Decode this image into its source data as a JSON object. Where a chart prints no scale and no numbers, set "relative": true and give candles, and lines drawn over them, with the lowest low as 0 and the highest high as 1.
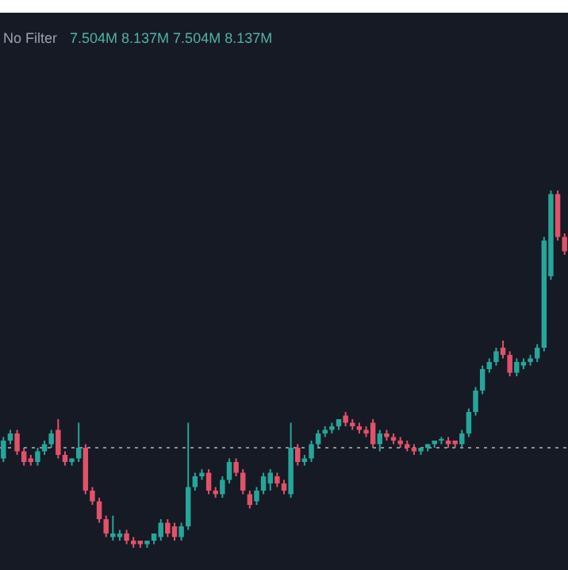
{
  "chart_data": {
    "type": "candlestick",
    "relative": true,
    "annotations": [
      "No Filter",
      "7.504M 8.137M 7.504M 8.137M"
    ],
    "categories": [
      null,
      null,
      null,
      null,
      null,
      null,
      null,
      null,
      null,
      null,
      null,
      null,
      null,
      null,
      null,
      null,
      null,
      null,
      null,
      null,
      null,
      null,
      null,
      null,
      null,
      null,
      null,
      null,
      null,
      null,
      null,
      null,
      null,
      null,
      null,
      null,
      null,
      null,
      null,
      null,
      null,
      null,
      null,
      null,
      null,
      null,
      null,
      null,
      null,
      null,
      null,
      null,
      null,
      null,
      null,
      null,
      null,
      null,
      null,
      null,
      null,
      null,
      null,
      null,
      null,
      null,
      null,
      null,
      null,
      null,
      null,
      null,
      null,
      null,
      null,
      null,
      null,
      null,
      null,
      null,
      null,
      null,
      null
    ],
    "ohlc": [
      [
        0.25,
        0.31,
        0.24,
        0.3
      ],
      [
        0.3,
        0.33,
        0.29,
        0.32
      ],
      [
        0.32,
        0.33,
        0.26,
        0.27
      ],
      [
        0.27,
        0.28,
        0.23,
        0.24
      ],
      [
        0.25,
        0.26,
        0.23,
        0.24
      ],
      [
        0.24,
        0.28,
        0.23,
        0.27
      ],
      [
        0.27,
        0.3,
        0.26,
        0.29
      ],
      [
        0.29,
        0.33,
        0.28,
        0.32
      ],
      [
        0.33,
        0.36,
        0.25,
        0.26
      ],
      [
        0.26,
        0.27,
        0.23,
        0.24
      ],
      [
        0.24,
        0.25,
        0.23,
        0.25
      ],
      [
        0.25,
        0.35,
        0.24,
        0.28
      ],
      [
        0.28,
        0.29,
        0.15,
        0.16
      ],
      [
        0.16,
        0.17,
        0.12,
        0.13
      ],
      [
        0.13,
        0.14,
        0.07,
        0.08
      ],
      [
        0.08,
        0.09,
        0.03,
        0.04
      ],
      [
        0.03,
        0.09,
        0.02,
        0.04
      ],
      [
        0.03,
        0.05,
        0.02,
        0.04
      ],
      [
        0.04,
        0.05,
        0.01,
        0.02
      ],
      [
        0.02,
        0.03,
        0.0,
        0.01
      ],
      [
        0.02,
        0.02,
        0.0,
        0.01
      ],
      [
        0.01,
        0.02,
        0.0,
        0.02
      ],
      [
        0.02,
        0.04,
        0.01,
        0.04
      ],
      [
        0.03,
        0.08,
        0.02,
        0.07
      ],
      [
        0.07,
        0.08,
        0.03,
        0.04
      ],
      [
        0.06,
        0.07,
        0.02,
        0.03
      ],
      [
        0.03,
        0.07,
        0.02,
        0.06
      ],
      [
        0.06,
        0.35,
        0.05,
        0.17
      ],
      [
        0.17,
        0.21,
        0.16,
        0.2
      ],
      [
        0.2,
        0.22,
        0.19,
        0.21
      ],
      [
        0.21,
        0.22,
        0.15,
        0.16
      ],
      [
        0.16,
        0.17,
        0.14,
        0.15
      ],
      [
        0.15,
        0.2,
        0.14,
        0.19
      ],
      [
        0.19,
        0.25,
        0.18,
        0.24
      ],
      [
        0.24,
        0.25,
        0.2,
        0.21
      ],
      [
        0.21,
        0.22,
        0.15,
        0.16
      ],
      [
        0.15,
        0.16,
        0.11,
        0.12
      ],
      [
        0.13,
        0.17,
        0.12,
        0.16
      ],
      [
        0.16,
        0.21,
        0.15,
        0.2
      ],
      [
        0.18,
        0.22,
        0.16,
        0.21
      ],
      [
        0.2,
        0.21,
        0.17,
        0.18
      ],
      [
        0.18,
        0.19,
        0.15,
        0.16
      ],
      [
        0.15,
        0.35,
        0.14,
        0.28
      ],
      [
        0.28,
        0.29,
        0.23,
        0.24
      ],
      [
        0.24,
        0.26,
        0.23,
        0.25
      ],
      [
        0.25,
        0.3,
        0.24,
        0.29
      ],
      [
        0.29,
        0.33,
        0.28,
        0.32
      ],
      [
        0.32,
        0.34,
        0.31,
        0.33
      ],
      [
        0.33,
        0.35,
        0.32,
        0.34
      ],
      [
        0.34,
        0.36,
        0.33,
        0.36
      ],
      [
        0.37,
        0.38,
        0.34,
        0.35
      ],
      [
        0.35,
        0.36,
        0.33,
        0.34
      ],
      [
        0.34,
        0.35,
        0.32,
        0.33
      ],
      [
        0.33,
        0.34,
        0.31,
        0.32
      ],
      [
        0.35,
        0.36,
        0.28,
        0.29
      ],
      [
        0.29,
        0.33,
        0.27,
        0.32
      ],
      [
        0.32,
        0.33,
        0.3,
        0.31
      ],
      [
        0.31,
        0.32,
        0.29,
        0.3
      ],
      [
        0.3,
        0.31,
        0.28,
        0.29
      ],
      [
        0.29,
        0.3,
        0.27,
        0.28
      ],
      [
        0.28,
        0.29,
        0.26,
        0.27
      ],
      [
        0.27,
        0.28,
        0.26,
        0.28
      ],
      [
        0.28,
        0.29,
        0.27,
        0.29
      ],
      [
        0.29,
        0.3,
        0.28,
        0.3
      ],
      [
        0.3,
        0.31,
        0.29,
        0.3
      ],
      [
        0.3,
        0.31,
        0.28,
        0.29
      ],
      [
        0.3,
        0.3,
        0.28,
        0.29
      ],
      [
        0.29,
        0.33,
        0.28,
        0.32
      ],
      [
        0.32,
        0.39,
        0.31,
        0.38
      ],
      [
        0.38,
        0.45,
        0.37,
        0.44
      ],
      [
        0.44,
        0.51,
        0.43,
        0.5
      ],
      [
        0.5,
        0.53,
        0.49,
        0.52
      ],
      [
        0.52,
        0.56,
        0.51,
        0.55
      ],
      [
        0.56,
        0.58,
        0.53,
        0.54
      ],
      [
        0.54,
        0.55,
        0.48,
        0.49
      ],
      [
        0.49,
        0.53,
        0.48,
        0.52
      ],
      [
        0.51,
        0.53,
        0.5,
        0.52
      ],
      [
        0.52,
        0.54,
        0.51,
        0.53
      ],
      [
        0.53,
        0.57,
        0.52,
        0.56
      ],
      [
        0.56,
        0.87,
        0.55,
        0.86
      ],
      [
        0.76,
        1.0,
        0.75,
        0.99
      ],
      [
        0.99,
        1.0,
        0.86,
        0.87
      ],
      [
        0.87,
        0.88,
        0.82,
        0.83
      ]
    ],
    "colors": [
      "#26a69a",
      "#26a69a",
      "#e0526a",
      "#e0526a",
      "#e0526a",
      "#26a69a",
      "#26a69a",
      "#26a69a",
      "#e0526a",
      "#e0526a",
      "#26a69a",
      "#26a69a",
      "#e0526a",
      "#e0526a",
      "#e0526a",
      "#e0526a",
      "#26a69a",
      "#26a69a",
      "#e0526a",
      "#e0526a",
      "#e0526a",
      "#26a69a",
      "#26a69a",
      "#26a69a",
      "#e0526a",
      "#e0526a",
      "#26a69a",
      "#26a69a",
      "#26a69a",
      "#26a69a",
      "#e0526a",
      "#e0526a",
      "#26a69a",
      "#26a69a",
      "#e0526a",
      "#e0526a",
      "#e0526a",
      "#26a69a",
      "#26a69a",
      "#26a69a",
      "#e0526a",
      "#e0526a",
      "#26a69a",
      "#e0526a",
      "#26a69a",
      "#26a69a",
      "#26a69a",
      "#26a69a",
      "#26a69a",
      "#26a69a",
      "#e0526a",
      "#e0526a",
      "#e0526a",
      "#e0526a",
      "#e0526a",
      "#26a69a",
      "#e0526a",
      "#e0526a",
      "#e0526a",
      "#e0526a",
      "#e0526a",
      "#26a69a",
      "#26a69a",
      "#26a69a",
      "#26a69a",
      "#e0526a",
      "#e0526a",
      "#26a69a",
      "#26a69a",
      "#26a69a",
      "#26a69a",
      "#26a69a",
      "#26a69a",
      "#e0526a",
      "#e0526a",
      "#26a69a",
      "#26a69a",
      "#26a69a",
      "#26a69a",
      "#26a69a",
      "#26a69a",
      "#e0526a",
      "#e0526a"
    ],
    "ref_lines": [
      {
        "axis": "y",
        "value": 0.28,
        "color": "#8a8f9c",
        "line_style": "dotted"
      }
    ]
  }
}
